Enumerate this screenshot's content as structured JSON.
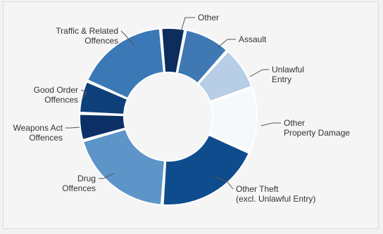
{
  "chart_data": {
    "type": "pie",
    "subtype": "donut",
    "slices": [
      {
        "label_lines": [
          "Other"
        ],
        "value": 4.5,
        "color": "#0c2d5e"
      },
      {
        "label_lines": [
          "Assault"
        ],
        "value": 8.5,
        "color": "#3f78b3"
      },
      {
        "label_lines": [
          "Unlawful",
          "Entry"
        ],
        "value": 8.0,
        "color": "#b8cde6"
      },
      {
        "label_lines": [
          "Other",
          "Property Damage"
        ],
        "value": 12.0,
        "color": "#f6f9fc"
      },
      {
        "label_lines": [
          "Other Theft",
          "(excl. Unlawful Entry)"
        ],
        "value": 19.5,
        "color": "#0f4c8e"
      },
      {
        "label_lines": [
          "Drug",
          "Offences"
        ],
        "value": 19.5,
        "color": "#5e95c8"
      },
      {
        "label_lines": [
          "Weapons Act",
          "Offences"
        ],
        "value": 5.0,
        "color": "#0c3066"
      },
      {
        "label_lines": [
          "Good Order",
          "Offences"
        ],
        "value": 6.0,
        "color": "#0e3f7a"
      },
      {
        "label_lines": [
          "Traffic & Related",
          "Offences"
        ],
        "value": 17.0,
        "color": "#3b78b6"
      }
    ]
  }
}
